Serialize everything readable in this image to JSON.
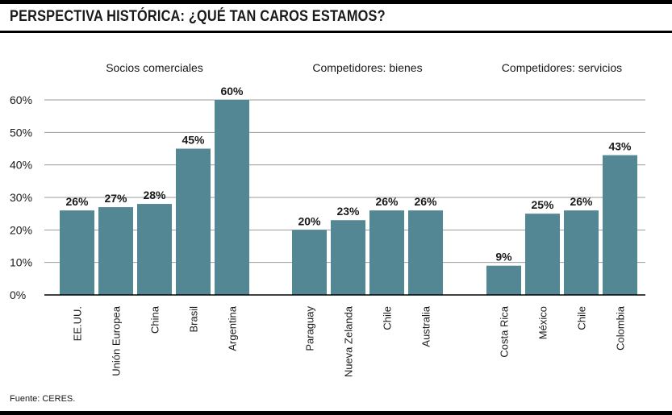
{
  "title": "PERSPECTIVA HISTÓRICA: ¿QUÉ TAN CAROS ESTAMOS?",
  "source": "Fuente: CERES.",
  "colors": {
    "bar": "#548794",
    "grid": "#9a9a9a",
    "axis": "#000000"
  },
  "chart_data": {
    "type": "bar",
    "title": "",
    "xlabel": "",
    "ylabel": "",
    "ylim": [
      0,
      60
    ],
    "yticks": [
      "0%",
      "10%",
      "20%",
      "30%",
      "40%",
      "50%",
      "60%"
    ],
    "grid": true,
    "groups": [
      {
        "label": "Socios comerciales",
        "categories": [
          "EE.UU.",
          "Unión Europea",
          "China",
          "Brasil",
          "Argentina"
        ],
        "values": [
          26,
          27,
          28,
          45,
          60
        ],
        "value_labels": [
          "26%",
          "27%",
          "28%",
          "45%",
          "60%"
        ]
      },
      {
        "label": "Competidores: bienes",
        "categories": [
          "Paraguay",
          "Nueva Zelanda",
          "Chile",
          "Australia"
        ],
        "values": [
          20,
          23,
          26,
          26
        ],
        "value_labels": [
          "20%",
          "23%",
          "26%",
          "26%"
        ]
      },
      {
        "label": "Competidores: servicios",
        "categories": [
          "Costa Rica",
          "México",
          "Chile",
          "Colombia"
        ],
        "values": [
          9,
          25,
          26,
          43
        ],
        "value_labels": [
          "9%",
          "25%",
          "26%",
          "43%"
        ]
      }
    ]
  }
}
